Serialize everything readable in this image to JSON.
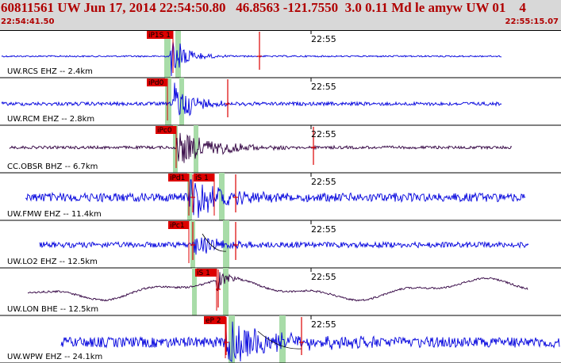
{
  "header": {
    "title": "60811561 UW Jun 17, 2014 22:54:50.80   46.8563 -121.7550  3.0 0.11 Md le amyw UW 01    4",
    "start_time": "22:54:41.50",
    "end_time": "22:55:15.07"
  },
  "colors": {
    "header_bg": "#d8d8d8",
    "header_text": "#b00000",
    "trace_blue": "#0000dd",
    "trace_dark": "#300040",
    "pick_red": "#dd0000",
    "window_green": "#a8dca8",
    "grid": "#000000"
  },
  "traces": [
    {
      "station": "UW.RCS EHZ -- 2.4km",
      "time_label": "22:55",
      "picks": [
        "iP1S 1"
      ],
      "style": "blue"
    },
    {
      "station": "UW.RCM EHZ -- 2.8km",
      "time_label": "22:55",
      "picks": [
        "iPd0"
      ],
      "style": "blue"
    },
    {
      "station": "CC.OBSR BHZ -- 6.7km",
      "time_label": "22:55",
      "picks": [
        "iPc0"
      ],
      "style": "dark"
    },
    {
      "station": "UW.FMW EHZ -- 11.4km",
      "time_label": "22:55",
      "picks": [
        "iPd1",
        "iS 1"
      ],
      "style": "blue"
    },
    {
      "station": "UW.LO2 EHZ -- 12.5km",
      "time_label": "22:55",
      "picks": [
        "iPc1"
      ],
      "style": "blue"
    },
    {
      "station": "UW.LON BHE -- 12.5km",
      "time_label": "22:55",
      "picks": [
        "iS 1"
      ],
      "style": "dark"
    },
    {
      "station": "UW.WPW EHZ -- 24.1km",
      "time_label": "22:55",
      "picks": [
        "eP 2"
      ],
      "style": "blue"
    }
  ]
}
